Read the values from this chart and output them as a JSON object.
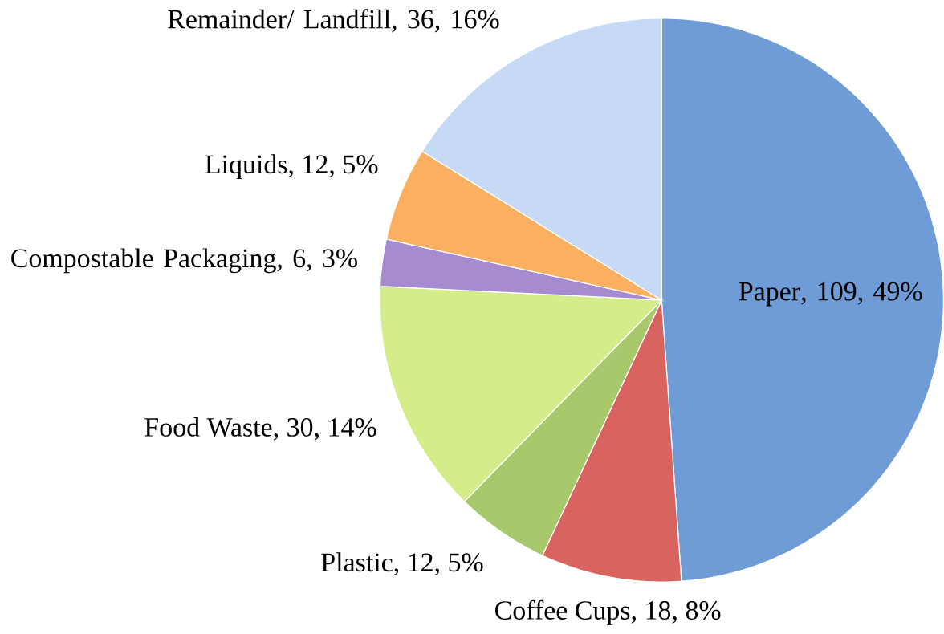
{
  "chart_data": {
    "type": "pie",
    "categories": [
      "Paper",
      "Coffee Cups",
      "Plastic",
      "Food Waste",
      "Compostable Packaging",
      "Liquids",
      "Remainder/ Landfill"
    ],
    "values": [
      109,
      18,
      12,
      30,
      6,
      12,
      36
    ],
    "value_labels": [
      ", 109, 49%",
      ", 18, 8%",
      ", 12, 5%",
      ", 30, 14%",
      ", 6, 3%",
      ", 12, 5%",
      ", 36, 16%"
    ],
    "colors": [
      "#6f9bd6",
      "#d9645f",
      "#a7c86b",
      "#d4ec8a",
      "#a78bd0",
      "#fbb061",
      "#c7daf5"
    ]
  }
}
